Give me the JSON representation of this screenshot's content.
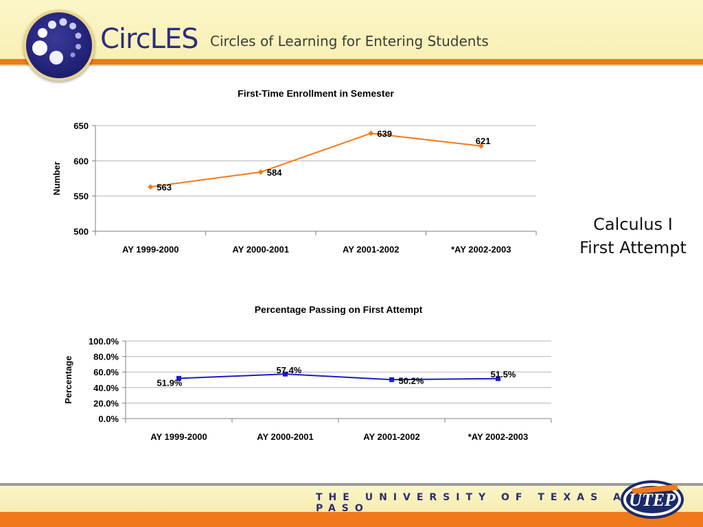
{
  "header": {
    "brand": "CircLES",
    "tagline": "Circles of Learning for Entering Students"
  },
  "side_caption": {
    "line1": "Calculus I",
    "line2": "First Attempt"
  },
  "footer": {
    "university": "THE UNIVERSITY OF TEXAS AT EL PASO",
    "logo_text": "UTEP"
  },
  "colors": {
    "accent_orange": "#F07A1A",
    "brand_navy": "#2C2C80",
    "series_orange": "#F07A1A",
    "series_blue": "#1A1ACC"
  },
  "chart_data": [
    {
      "type": "line",
      "title": "First-Time Enrollment in Semester",
      "xlabel": "",
      "ylabel": "Number",
      "categories": [
        "AY 1999-2000",
        "AY 2000-2001",
        "AY 2001-2002",
        "*AY 2002-2003"
      ],
      "series": [
        {
          "values": [
            563,
            584,
            639,
            621
          ],
          "labels": [
            "563",
            "584",
            "639",
            "621"
          ],
          "color": "#F07A1A",
          "marker": "diamond"
        }
      ],
      "ylim": [
        500,
        650
      ],
      "yticks": [
        500,
        550,
        600,
        650
      ],
      "ytick_labels": [
        "500",
        "550",
        "600",
        "650"
      ],
      "grid": true,
      "legend": "none"
    },
    {
      "type": "line",
      "title": "Percentage Passing on First Attempt",
      "xlabel": "",
      "ylabel": "Percentage",
      "categories": [
        "AY 1999-2000",
        "AY 2000-2001",
        "AY 2001-2002",
        "*AY 2002-2003"
      ],
      "series": [
        {
          "values": [
            51.9,
            57.4,
            50.2,
            51.5
          ],
          "labels": [
            "51.9%",
            "57.4%",
            "50.2%",
            "51.5%"
          ],
          "color": "#1A1ACC",
          "marker": "square"
        }
      ],
      "ylim": [
        0,
        100
      ],
      "yticks": [
        0,
        20,
        40,
        60,
        80,
        100
      ],
      "ytick_labels": [
        "0.0%",
        "20.0%",
        "40.0%",
        "60.0%",
        "80.0%",
        "100.0%"
      ],
      "grid": true,
      "legend": "none"
    }
  ]
}
